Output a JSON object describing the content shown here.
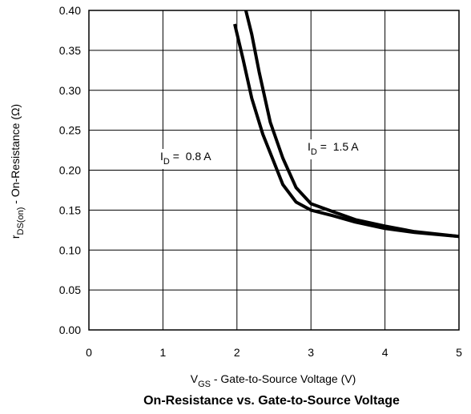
{
  "chart_data": {
    "type": "line",
    "title": "On-Resistance vs. Gate-to-Source Voltage",
    "xlabel": {
      "main": "V",
      "sub": "GS",
      "rest": " - Gate-to-Source Voltage (V)"
    },
    "ylabel": {
      "main": "r",
      "sub": "DS(on)",
      "rest": " - On-Resistance (Ω)"
    },
    "xlim": [
      0,
      5
    ],
    "ylim": [
      0,
      0.4
    ],
    "xticks": [
      0,
      1,
      2,
      3,
      4,
      5
    ],
    "xtick_labels": [
      "0",
      "1",
      "2",
      "3",
      "4",
      "5"
    ],
    "yticks": [
      0,
      0.05,
      0.1,
      0.15,
      0.2,
      0.25,
      0.3,
      0.35,
      0.4
    ],
    "ytick_labels": [
      "0.00",
      "0.05",
      "0.10",
      "0.15",
      "0.20",
      "0.25",
      "0.30",
      "0.35",
      "0.40"
    ],
    "grid": true,
    "series": [
      {
        "name": {
          "main": "I",
          "sub": "D",
          "rest": " =  0.8 A"
        },
        "x": [
          1.97,
          2.08,
          2.2,
          2.35,
          2.5,
          2.62,
          2.8,
          3.0,
          3.3,
          3.6,
          4.0,
          4.4,
          5.0
        ],
        "y": [
          0.383,
          0.34,
          0.29,
          0.245,
          0.21,
          0.182,
          0.16,
          0.15,
          0.143,
          0.135,
          0.127,
          0.122,
          0.117
        ]
      },
      {
        "name": {
          "main": "I",
          "sub": "D",
          "rest": " =  1.5 A"
        },
        "x": [
          2.12,
          2.2,
          2.3,
          2.45,
          2.62,
          2.8,
          3.0,
          3.3,
          3.6,
          4.0,
          4.4,
          5.0
        ],
        "y": [
          0.4,
          0.37,
          0.323,
          0.26,
          0.215,
          0.178,
          0.158,
          0.148,
          0.138,
          0.13,
          0.123,
          0.117
        ]
      }
    ]
  }
}
